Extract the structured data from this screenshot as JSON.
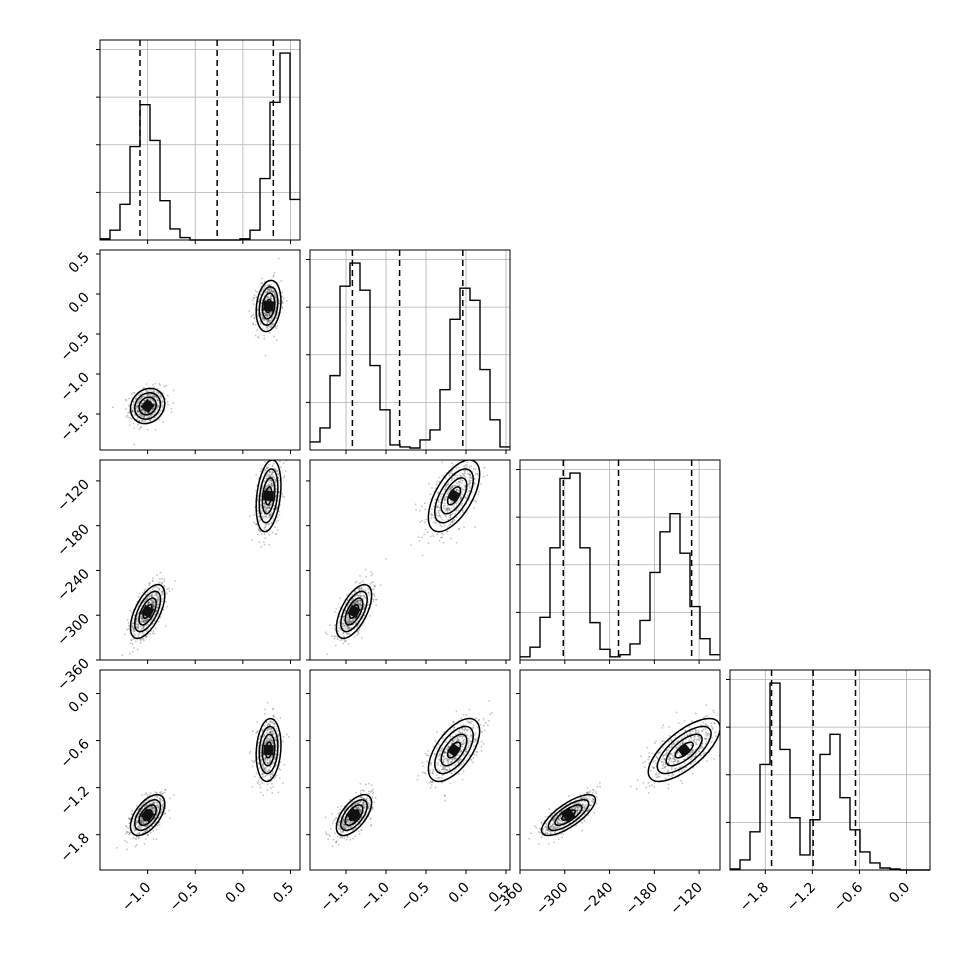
{
  "chart_data": {
    "type": "corner",
    "grid": true,
    "parameters": [
      {
        "range": [
          -1.5,
          0.6
        ],
        "ticks": [
          -1.0,
          -0.5,
          0.0,
          0.5
        ],
        "tick_labels": [
          "−1.0",
          "−0.5",
          "0.0",
          "0.5"
        ]
      },
      {
        "range": [
          -1.95,
          0.55
        ],
        "ticks": [
          -1.5,
          -1.0,
          -0.5,
          0.0,
          0.5
        ],
        "tick_labels": [
          "−1.5",
          "−1.0",
          "−0.5",
          "0.0",
          "0.5"
        ]
      },
      {
        "range": [
          -360,
          -92
        ],
        "ticks": [
          -360,
          -300,
          -240,
          -180,
          -120
        ],
        "tick_labels": [
          "−360",
          "−300",
          "−240",
          "−180",
          "−120"
        ]
      },
      {
        "range": [
          -2.25,
          0.3
        ],
        "ticks": [
          -1.8,
          -1.2,
          -0.6,
          0.0
        ],
        "tick_labels": [
          "−1.8",
          "−1.2",
          "−0.6",
          "0.0"
        ]
      }
    ],
    "histograms": [
      {
        "bins": [
          -1.5,
          -1.395,
          -1.29,
          -1.185,
          -1.08,
          -0.975,
          -0.87,
          -0.765,
          -0.66,
          -0.555,
          -0.45,
          -0.345,
          -0.24,
          -0.135,
          -0.03,
          0.075,
          0.18,
          0.285,
          0.39,
          0.495,
          0.6
        ],
        "counts": [
          1,
          8,
          29,
          76,
          110,
          81,
          32,
          9,
          2,
          0,
          0,
          0,
          0,
          0,
          1,
          8,
          50,
          112,
          152,
          33
        ],
        "quantiles": [
          -1.08,
          -0.27,
          0.32
        ]
      },
      {
        "bins": [
          -1.95,
          -1.825,
          -1.7,
          -1.575,
          -1.45,
          -1.325,
          -1.2,
          -1.075,
          -0.95,
          -0.825,
          -0.7,
          -0.575,
          -0.45,
          -0.325,
          -0.2,
          -0.075,
          0.05,
          0.175,
          0.3,
          0.425,
          0.55
        ],
        "counts": [
          8,
          22,
          74,
          163,
          186,
          159,
          84,
          40,
          5,
          3,
          2,
          10,
          20,
          60,
          130,
          161,
          149,
          80,
          30,
          3
        ],
        "quantiles": [
          -1.42,
          -0.83,
          -0.04
        ]
      },
      {
        "bins": [
          -360,
          -346.6,
          -333.2,
          -319.8,
          -306.4,
          -293,
          -279.6,
          -266.2,
          -252.8,
          -239.4,
          -226,
          -212.6,
          -199.2,
          -185.8,
          -172.4,
          -159,
          -145.6,
          -132.2,
          -118.8,
          -105.4,
          -92
        ],
        "counts": [
          3,
          12,
          40,
          105,
          170,
          175,
          105,
          35,
          10,
          3,
          5,
          15,
          37,
          82,
          120,
          137,
          100,
          50,
          20,
          5
        ],
        "quantiles": [
          -302,
          -228,
          -130
        ]
      },
      {
        "bins": [
          -2.25,
          -2.1225,
          -1.995,
          -1.8675,
          -1.74,
          -1.6125,
          -1.485,
          -1.3575,
          -1.23,
          -1.1025,
          -0.975,
          -0.8475,
          -0.72,
          -0.5925,
          -0.465,
          -0.3375,
          -0.21,
          -0.0825,
          0.045,
          0.1725,
          0.3
        ],
        "counts": [
          1,
          10,
          38,
          105,
          186,
          120,
          52,
          15,
          50,
          115,
          135,
          72,
          40,
          18,
          7,
          2,
          1,
          0,
          0,
          0
        ],
        "quantiles": [
          -1.72,
          -1.19,
          -0.65
        ]
      }
    ],
    "modes": [
      {
        "weight": 0.55,
        "mean": [
          -1.0,
          -1.4,
          -295,
          -1.55
        ],
        "sd": [
          0.09,
          0.11,
          18,
          0.13
        ]
      },
      {
        "weight": 0.45,
        "mean": [
          0.27,
          -0.15,
          -140,
          -0.72
        ],
        "sd": [
          0.065,
          0.16,
          24,
          0.2
        ]
      }
    ],
    "correlations": [
      {
        "pair": [
          0,
          1
        ],
        "values": [
          0.15,
          0.2
        ]
      },
      {
        "pair": [
          0,
          2
        ],
        "values": [
          0.6,
          0.3
        ]
      },
      {
        "pair": [
          1,
          2
        ],
        "values": [
          0.6,
          0.6
        ]
      },
      {
        "pair": [
          0,
          3
        ],
        "values": [
          0.55,
          0.15
        ]
      },
      {
        "pair": [
          1,
          3
        ],
        "values": [
          0.6,
          0.6
        ]
      },
      {
        "pair": [
          2,
          3
        ],
        "values": [
          0.75,
          0.7
        ]
      }
    ],
    "contour_levels_sigma": [
      0.5,
      1.0,
      1.5,
      2.0
    ]
  }
}
